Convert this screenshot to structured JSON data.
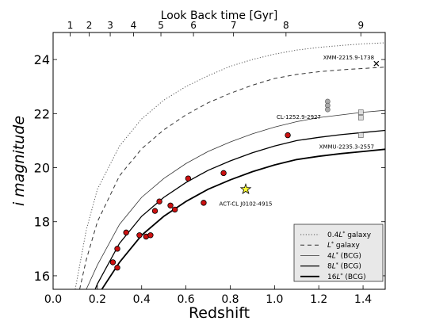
{
  "chart_data": {
    "type": "scatter",
    "xlabel": "Redshift",
    "ylabel": "i magnitude",
    "top_axis_label": "Look Back time [Gyr]",
    "xlim": [
      0.0,
      1.5
    ],
    "ylim": [
      15.5,
      25.0
    ],
    "y_inverted": false,
    "x_ticks": [
      "0.0",
      "0.2",
      "0.4",
      "0.6",
      "0.8",
      "1.0",
      "1.2",
      "1.4"
    ],
    "y_ticks": [
      "16",
      "18",
      "20",
      "22",
      "24"
    ],
    "top_ticks": [
      {
        "label": "1",
        "z": 0.077
      },
      {
        "label": "2",
        "z": 0.163
      },
      {
        "label": "3",
        "z": 0.258
      },
      {
        "label": "4",
        "z": 0.363
      },
      {
        "label": "5",
        "z": 0.487
      },
      {
        "label": "6",
        "z": 0.634
      },
      {
        "label": "7",
        "z": 0.815
      },
      {
        "label": "8",
        "z": 1.052
      },
      {
        "label": "9",
        "z": 1.39
      }
    ],
    "curves": [
      {
        "key": "l04",
        "style": "dotted",
        "x": [
          0.1,
          0.15,
          0.2,
          0.3,
          0.4,
          0.5,
          0.6,
          0.7,
          0.8,
          0.9,
          1.0,
          1.1,
          1.2,
          1.3,
          1.4,
          1.5
        ],
        "y": [
          15.5,
          17.7,
          19.2,
          20.8,
          21.8,
          22.5,
          23.0,
          23.4,
          23.75,
          24.0,
          24.2,
          24.35,
          24.45,
          24.52,
          24.58,
          24.62
        ]
      },
      {
        "key": "l1",
        "style": "dashed",
        "x": [
          0.12,
          0.15,
          0.2,
          0.3,
          0.4,
          0.5,
          0.6,
          0.7,
          0.8,
          0.9,
          1.0,
          1.1,
          1.2,
          1.3,
          1.4,
          1.5
        ],
        "y": [
          15.5,
          16.6,
          18.0,
          19.7,
          20.7,
          21.4,
          21.95,
          22.4,
          22.75,
          23.05,
          23.3,
          23.45,
          23.55,
          23.62,
          23.67,
          23.72
        ]
      },
      {
        "key": "l4",
        "style": "solid-thin",
        "x": [
          0.15,
          0.2,
          0.3,
          0.4,
          0.5,
          0.6,
          0.7,
          0.8,
          0.9,
          1.0,
          1.1,
          1.2,
          1.3,
          1.4,
          1.5
        ],
        "y": [
          15.5,
          16.4,
          17.9,
          18.9,
          19.6,
          20.15,
          20.6,
          20.95,
          21.25,
          21.5,
          21.7,
          21.85,
          21.95,
          22.05,
          22.12
        ]
      },
      {
        "key": "l8",
        "style": "solid",
        "x": [
          0.19,
          0.2,
          0.3,
          0.4,
          0.5,
          0.6,
          0.7,
          0.8,
          0.9,
          1.0,
          1.1,
          1.2,
          1.3,
          1.4,
          1.5
        ],
        "y": [
          15.5,
          15.7,
          17.2,
          18.2,
          18.9,
          19.45,
          19.9,
          20.25,
          20.55,
          20.8,
          21.0,
          21.12,
          21.22,
          21.3,
          21.38
        ]
      },
      {
        "key": "l16",
        "style": "solid-thick",
        "x": [
          0.22,
          0.3,
          0.4,
          0.5,
          0.6,
          0.7,
          0.8,
          0.9,
          1.0,
          1.1,
          1.2,
          1.3,
          1.4,
          1.5
        ],
        "y": [
          15.5,
          16.5,
          17.5,
          18.2,
          18.75,
          19.2,
          19.55,
          19.85,
          20.1,
          20.3,
          20.42,
          20.52,
          20.6,
          20.68
        ]
      }
    ],
    "bcg_points": {
      "x": [
        0.27,
        0.29,
        0.29,
        0.33,
        0.39,
        0.42,
        0.44,
        0.46,
        0.48,
        0.53,
        0.55,
        0.61,
        0.68,
        0.77,
        1.06
      ],
      "y": [
        16.5,
        16.3,
        17.0,
        17.6,
        17.5,
        17.45,
        17.5,
        18.4,
        18.75,
        18.6,
        18.45,
        19.6,
        18.7,
        19.8,
        21.2
      ]
    },
    "star_point": {
      "x": 0.87,
      "y": 19.2,
      "label": "ACT-CL J0102-4915"
    },
    "grey_circles": {
      "x": [
        1.24,
        1.24,
        1.24
      ],
      "y": [
        22.45,
        22.3,
        22.15
      ]
    },
    "squares": {
      "x": [
        1.39,
        1.39,
        1.39
      ],
      "y": [
        22.05,
        21.85,
        21.2
      ]
    },
    "cross_point": {
      "x": 1.46,
      "y": 23.85
    },
    "annotations": [
      {
        "text": "XMM-2215.9-1738",
        "x": 1.45,
        "y": 24.0
      },
      {
        "text": "CL-1252.9-2927",
        "x": 1.21,
        "y": 21.8
      },
      {
        "text": "XMMU-2235.3-2557",
        "x": 1.45,
        "y": 20.7
      },
      {
        "text": "ACT-CL J0102-4915",
        "x": 0.87,
        "y": 18.6
      }
    ],
    "legend_position": "lower-right",
    "legend": [
      {
        "key": "l04",
        "prefix": "0.4",
        "lstar": true,
        "suffix": " galaxy"
      },
      {
        "key": "l1",
        "prefix": "",
        "lstar": true,
        "suffix": " galaxy"
      },
      {
        "key": "l4",
        "prefix": "4",
        "lstar": true,
        "suffix": " (BCG)"
      },
      {
        "key": "l8",
        "prefix": "8",
        "lstar": true,
        "suffix": " (BCG)"
      },
      {
        "key": "l16",
        "prefix": "16",
        "lstar": true,
        "suffix": " (BCG)"
      }
    ],
    "colors": {
      "bcg_fill": "#cc1111",
      "star_fill": "#ffff33",
      "grey": "#aaaaaa",
      "curve": "#000000"
    }
  }
}
